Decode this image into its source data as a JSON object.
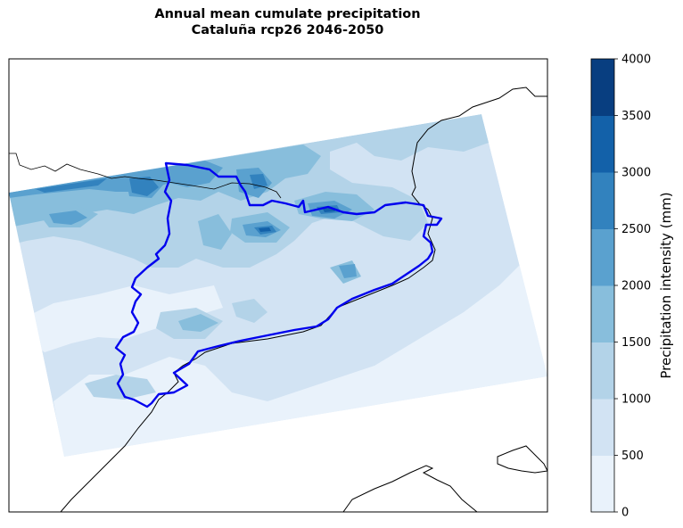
{
  "title": "Annual mean cumulate precipitation",
  "subtitle": "Cataluña rcp26 2046-2050",
  "colorbar": {
    "label": "Precipitation intensity (mm)",
    "ticks": [
      "0",
      "500",
      "1000",
      "1500",
      "2000",
      "2500",
      "3000",
      "3500",
      "4000"
    ],
    "colors": [
      "#e9f2fb",
      "#d2e3f3",
      "#b3d3e8",
      "#88bedc",
      "#5aa1cf",
      "#3282be",
      "#1361a9",
      "#083e80"
    ],
    "range": [
      0,
      4000
    ]
  },
  "map": {
    "field": "precipitation",
    "region_outline": "Cataluña",
    "region_outline_color": "#0000ee",
    "coastline_color": "#000000"
  }
}
